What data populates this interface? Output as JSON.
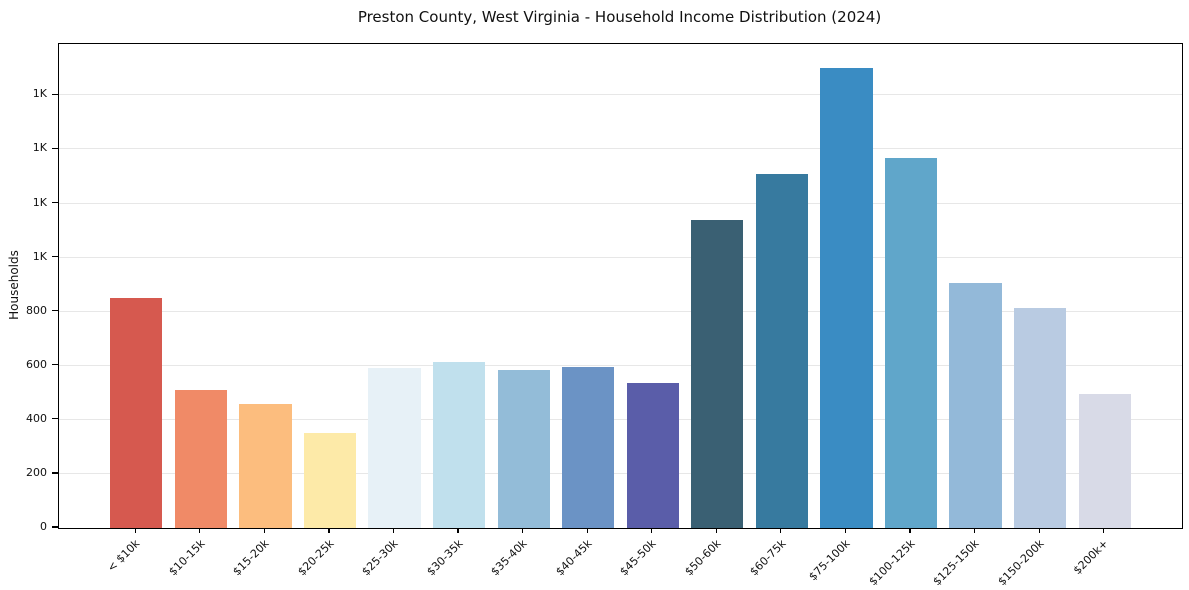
{
  "chart_data": {
    "type": "bar",
    "title": "Preston County, West Virginia - Household Income Distribution (2024)",
    "xlabel": "",
    "ylabel": "Households",
    "categories": [
      "< $10k",
      "$10-15k",
      "$15-20k",
      "$20-25k",
      "$25-30k",
      "$30-35k",
      "$35-40k",
      "$40-45k",
      "$45-50k",
      "$50-60k",
      "$60-75k",
      "$75-100k",
      "$100-125k",
      "$125-150k",
      "$150-200k",
      "$200k+"
    ],
    "values": [
      850,
      510,
      460,
      350,
      590,
      615,
      585,
      595,
      535,
      1140,
      1310,
      1700,
      1370,
      905,
      815,
      495
    ],
    "bar_colors": [
      "#d6594f",
      "#f08a67",
      "#fcbd7e",
      "#fdeaa8",
      "#e7f1f7",
      "#c0e0ed",
      "#93bcd8",
      "#6b93c5",
      "#5a5da9",
      "#3a6073",
      "#377a9f",
      "#3a8cc3",
      "#60a6ca",
      "#93b9d9",
      "#b9cbe2",
      "#d8dae7"
    ],
    "ylim": [
      0,
      1790
    ],
    "yticks": [
      {
        "value": 0,
        "label": "0"
      },
      {
        "value": 200,
        "label": "200"
      },
      {
        "value": 400,
        "label": "400"
      },
      {
        "value": 600,
        "label": "600"
      },
      {
        "value": 800,
        "label": "800"
      },
      {
        "value": 1000,
        "label": "1K"
      },
      {
        "value": 1200,
        "label": "1K"
      },
      {
        "value": 1400,
        "label": "1K"
      },
      {
        "value": 1600,
        "label": "1K"
      }
    ],
    "grid": "horizontal",
    "legend": "none",
    "background_color": "#ffffff",
    "spine_color": "#000000",
    "gridline_color": "#e7e7e7"
  }
}
